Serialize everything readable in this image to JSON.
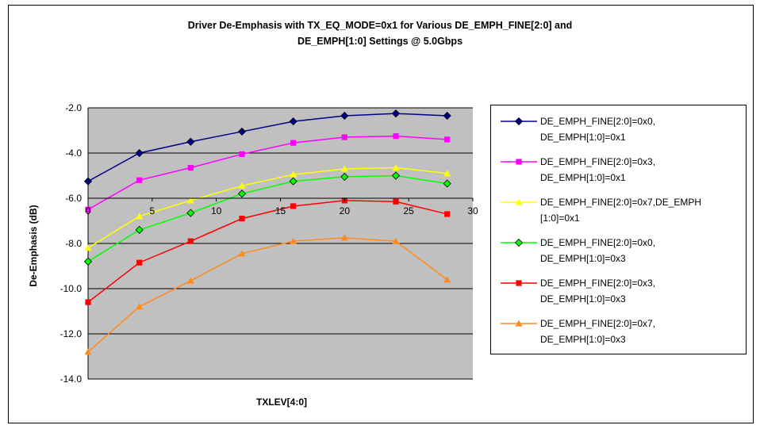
{
  "chart_data": {
    "type": "line",
    "title_line1": "Driver De-Emphasis with TX_EQ_MODE=0x1 for Various DE_EMPH_FINE[2:0] and",
    "title_line2": "DE_EMPH[1:0] Settings @ 5.0Gbps",
    "xlabel": "TXLEV[4:0]",
    "ylabel": "De-Emphasis (dB)",
    "xlim": [
      0,
      30
    ],
    "ylim": [
      -14,
      -2
    ],
    "x_ticks": [
      0,
      5,
      10,
      15,
      20,
      25,
      30
    ],
    "y_ticks": [
      -2.0,
      -4.0,
      -6.0,
      -8.0,
      -10.0,
      -12.0,
      -14.0
    ],
    "y_tick_labels": [
      "-2.0",
      "-4.0",
      "-6.0",
      "-8.0",
      "-10.0",
      "-12.0",
      "-14.0"
    ],
    "grid": "horizontal",
    "legend_position": "right",
    "x": [
      0,
      4,
      8,
      12,
      16,
      20,
      24,
      28
    ],
    "series": [
      {
        "name": "DE_EMPH_FINE[2:0]=0x0, DE_EMPH[1:0]=0x1",
        "legend_lines": [
          "DE_EMPH_FINE[2:0]=0x0,",
          "DE_EMPH[1:0]=0x1"
        ],
        "color": "#00008b",
        "marker": "diamond",
        "values": [
          -5.25,
          -4.0,
          -3.5,
          -3.05,
          -2.6,
          -2.35,
          -2.25,
          -2.35
        ]
      },
      {
        "name": "DE_EMPH_FINE[2:0]=0x3, DE_EMPH[1:0]=0x1",
        "legend_lines": [
          "DE_EMPH_FINE[2:0]=0x3,",
          "DE_EMPH[1:0]=0x1"
        ],
        "color": "#ff00ff",
        "marker": "square",
        "values": [
          -6.5,
          -5.2,
          -4.65,
          -4.05,
          -3.55,
          -3.3,
          -3.25,
          -3.4
        ]
      },
      {
        "name": "DE_EMPH_FINE[2:0]=0x7,DE_EMPH [1:0]=0x1",
        "legend_lines": [
          "DE_EMPH_FINE[2:0]=0x7,DE_EMPH",
          "[1:0]=0x1"
        ],
        "color": "#ffff00",
        "marker": "triangle",
        "values": [
          -8.2,
          -6.8,
          -6.1,
          -5.45,
          -4.95,
          -4.7,
          -4.65,
          -4.9
        ]
      },
      {
        "name": "DE_EMPH_FINE[2:0]=0x0, DE_EMPH[1:0]=0x3",
        "legend_lines": [
          "DE_EMPH_FINE[2:0]=0x0,",
          "DE_EMPH[1:0]=0x3"
        ],
        "color": "#00ff00",
        "marker": "diamond",
        "values": [
          -8.8,
          -7.4,
          -6.65,
          -5.8,
          -5.25,
          -5.05,
          -5.0,
          -5.35
        ]
      },
      {
        "name": "DE_EMPH_FINE[2:0]=0x3, DE_EMPH[1:0]=0x3",
        "legend_lines": [
          "DE_EMPH_FINE[2:0]=0x3,",
          "DE_EMPH[1:0]=0x3"
        ],
        "color": "#ff0000",
        "marker": "square",
        "values": [
          -10.6,
          -8.85,
          -7.9,
          -6.9,
          -6.35,
          -6.1,
          -6.15,
          -6.7
        ]
      },
      {
        "name": "DE_EMPH_FINE[2:0]=0x7, DE_EMPH[1:0]=0x3",
        "legend_lines": [
          "DE_EMPH_FINE[2:0]=0x7,",
          "DE_EMPH[1:0]=0x3"
        ],
        "color": "#ff8c1a",
        "marker": "triangle",
        "values": [
          -12.8,
          -10.8,
          -9.65,
          -8.45,
          -7.9,
          -7.75,
          -7.9,
          -9.6
        ]
      }
    ]
  }
}
